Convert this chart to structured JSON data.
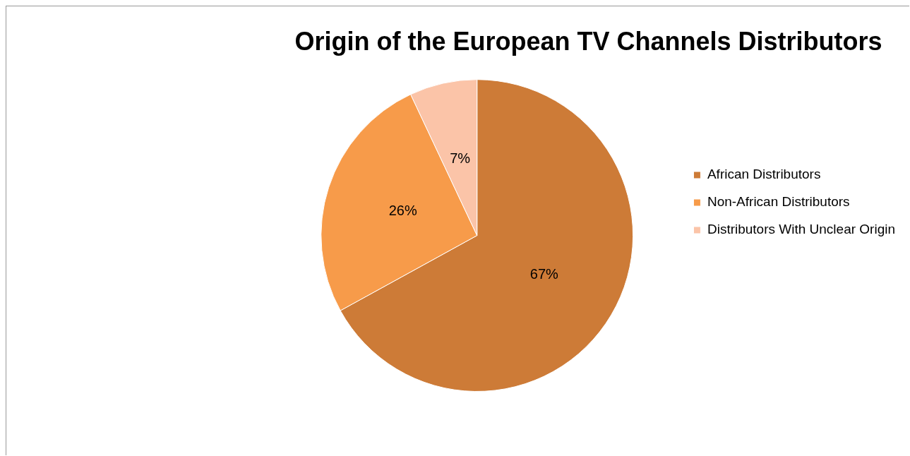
{
  "chart_data": {
    "type": "pie",
    "title": "Origin of the European TV Channels Distributors",
    "categories": [
      "African Distributors",
      "Non-African Distributors",
      "Distributors With Unclear Origin"
    ],
    "values": [
      67,
      26,
      7
    ],
    "colors": [
      "#cd7b37",
      "#f79b4a",
      "#fbc4a8"
    ],
    "value_labels": [
      "67%",
      "26%",
      "7%"
    ],
    "legend": "right"
  }
}
